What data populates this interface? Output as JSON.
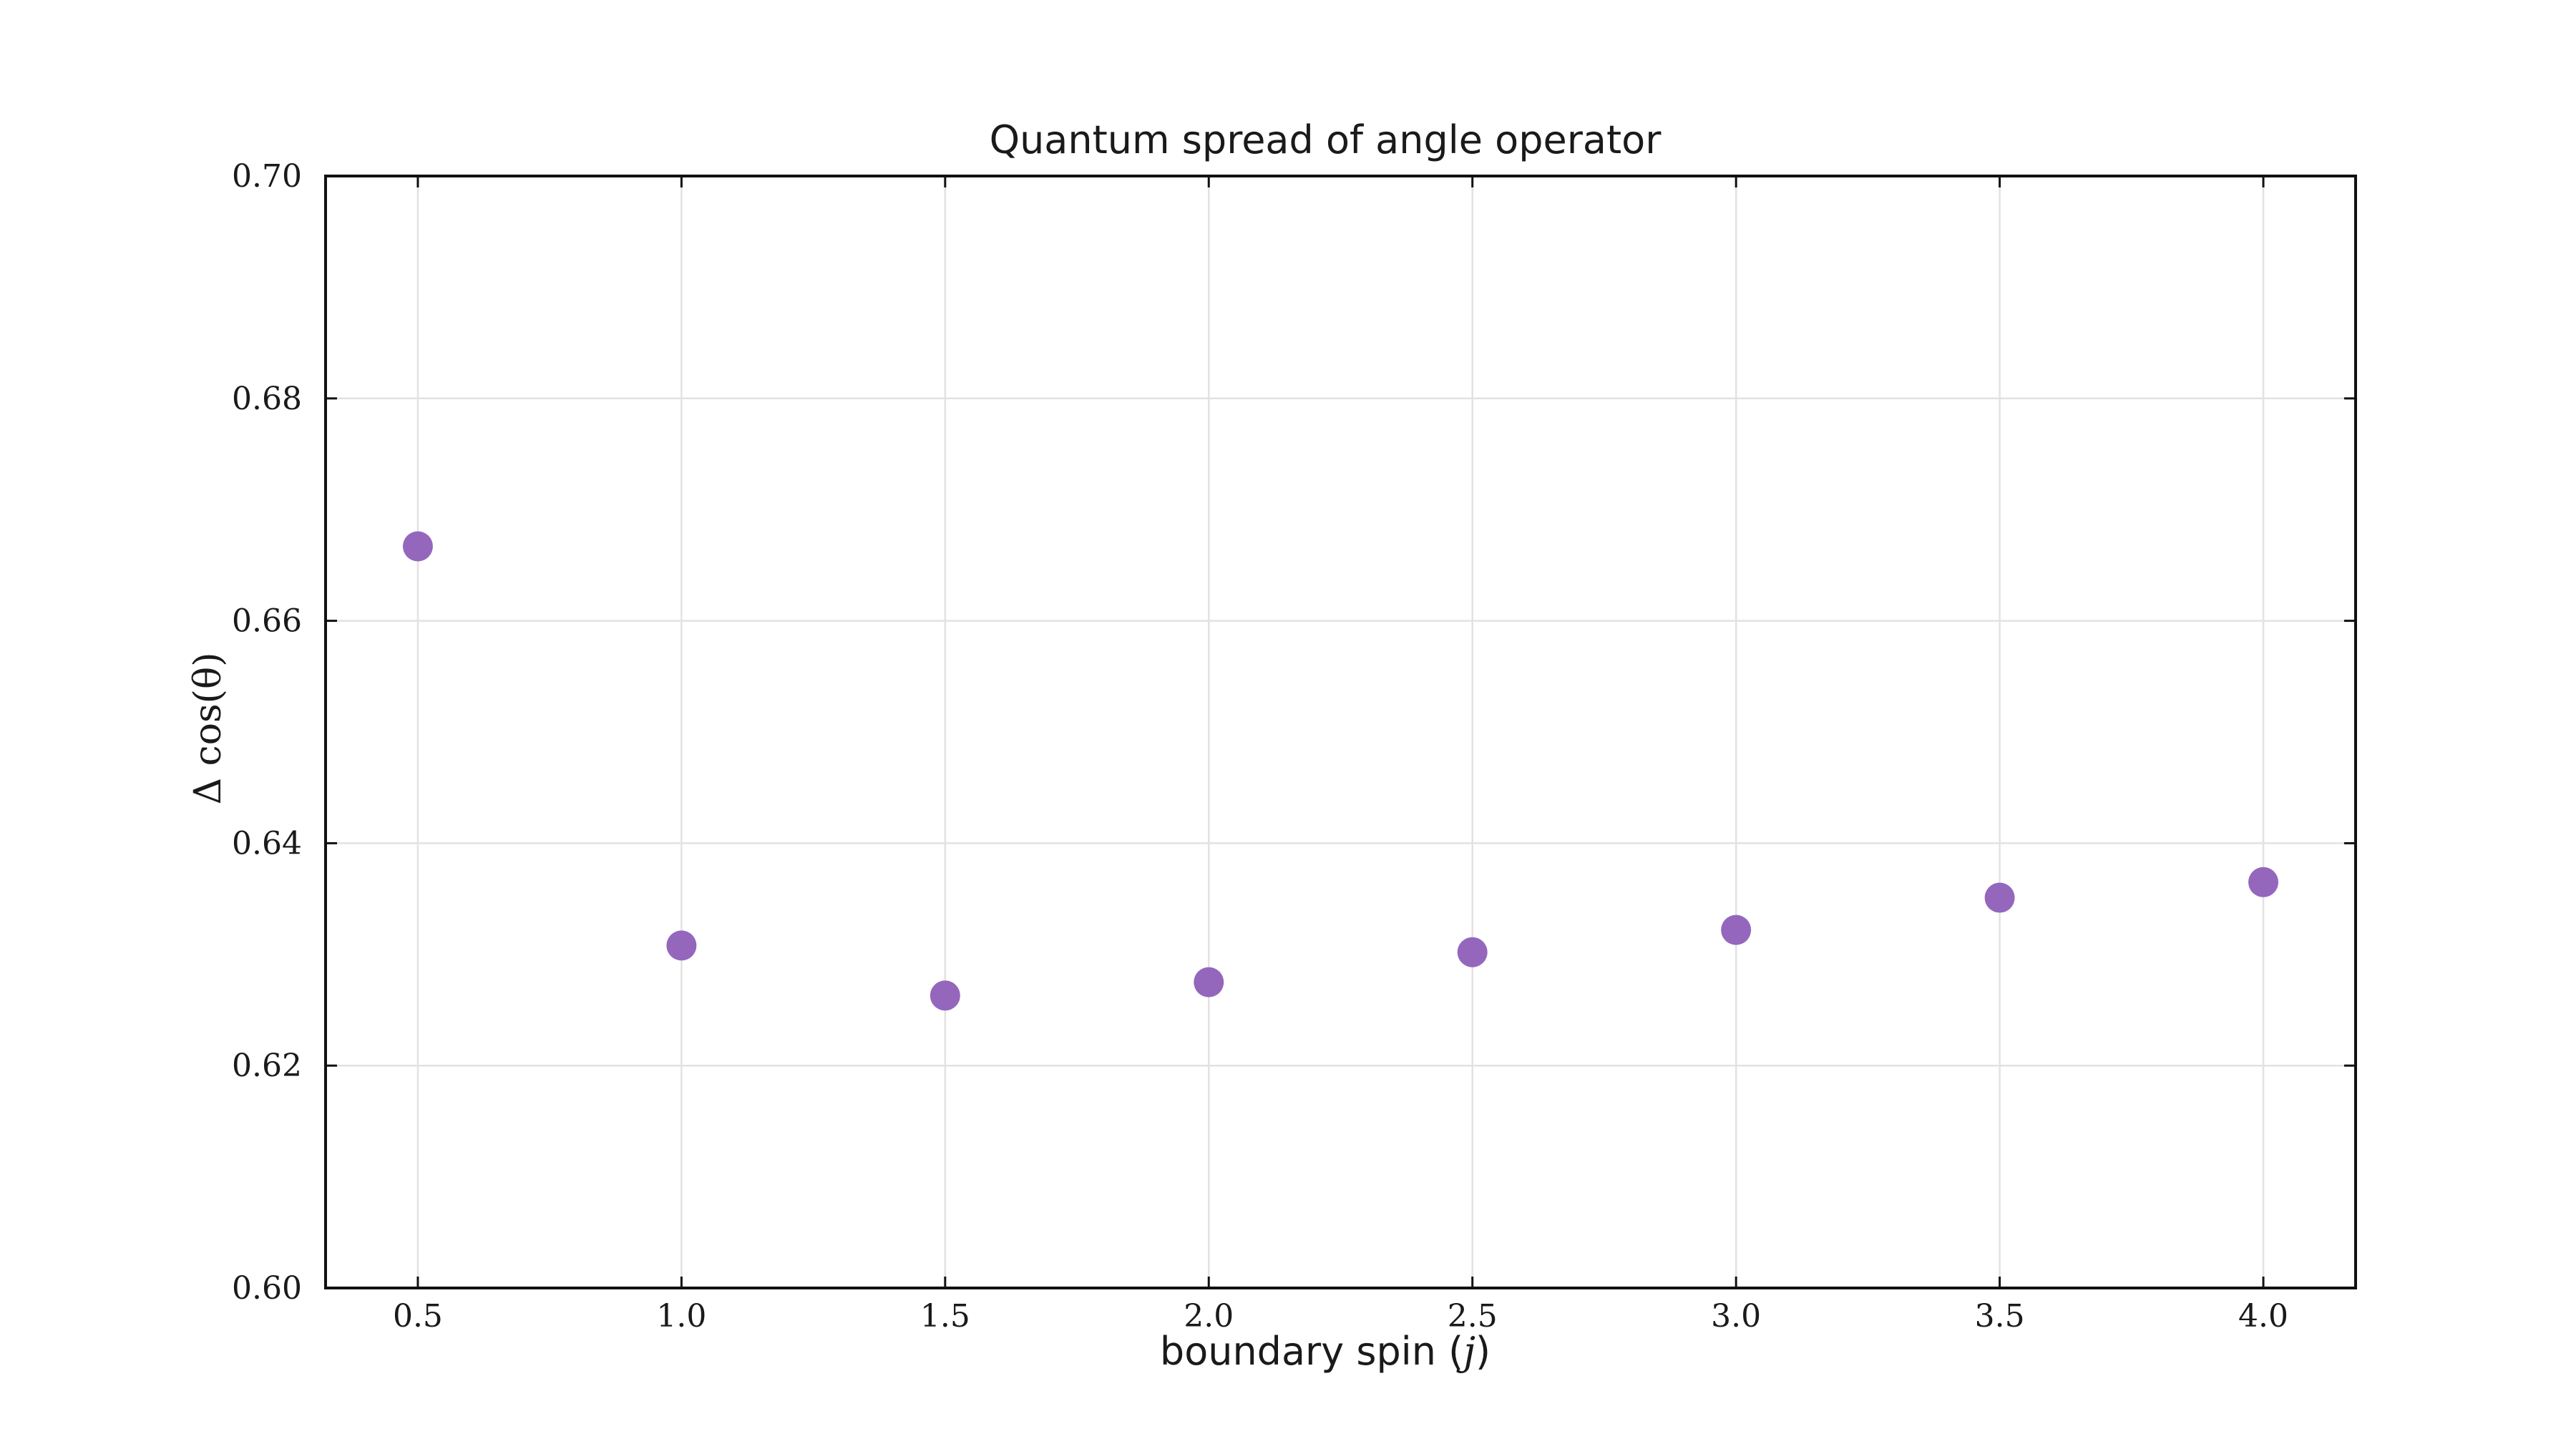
{
  "chart_data": {
    "type": "scatter",
    "title": "Quantum spread of angle operator",
    "xlabel_text": "boundary spin (",
    "xlabel_var": "j",
    "xlabel_close": ")",
    "ylabel": "Δ cos(θ)",
    "x": [
      0.5,
      1.0,
      1.5,
      2.0,
      2.5,
      3.0,
      3.5,
      4.0
    ],
    "y": [
      0.6667,
      0.6308,
      0.6263,
      0.6275,
      0.6302,
      0.6322,
      0.6351,
      0.6365
    ],
    "xlim": [
      0.325,
      4.175
    ],
    "ylim": [
      0.6,
      0.7
    ],
    "xticks": [
      0.5,
      1.0,
      1.5,
      2.0,
      2.5,
      3.0,
      3.5,
      4.0
    ],
    "xtick_labels": [
      "0.5",
      "1.0",
      "1.5",
      "2.0",
      "2.5",
      "3.0",
      "3.5",
      "4.0"
    ],
    "yticks": [
      0.6,
      0.62,
      0.64,
      0.66,
      0.68,
      0.7
    ],
    "ytick_labels": [
      "0.60",
      "0.62",
      "0.64",
      "0.66",
      "0.68",
      "0.70"
    ],
    "grid": true,
    "marker_color": "#9467bd"
  }
}
